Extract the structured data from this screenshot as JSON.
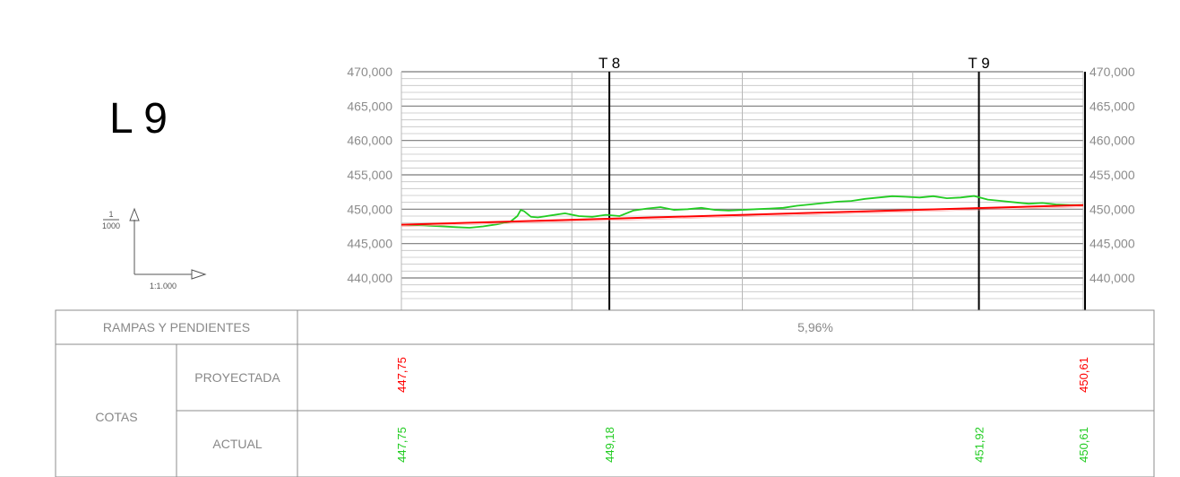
{
  "sheet": {
    "title": "L 9",
    "scale_fraction_num": "1",
    "scale_fraction_den": "1000",
    "scale_label": "1:1.000"
  },
  "profile": {
    "y_min": 437000,
    "y_max": 472000,
    "y_ticks": [
      {
        "value": 470000,
        "label": "470,000"
      },
      {
        "value": 465000,
        "label": "465,000"
      },
      {
        "value": 460000,
        "label": "460,000"
      },
      {
        "value": 455000,
        "label": "455,000"
      },
      {
        "value": 450000,
        "label": "450,000"
      },
      {
        "value": 445000,
        "label": "445,000"
      },
      {
        "value": 440000,
        "label": "440,000"
      }
    ],
    "markers": [
      {
        "label": "T 8",
        "station": 0.305
      },
      {
        "label": "T 9",
        "station": 0.847
      }
    ],
    "colors": {
      "actual": "#22cc22",
      "projected": "#ff0000",
      "grid": "#8c8c8c",
      "marker": "#000000"
    }
  },
  "table": {
    "rampas_label": "RAMPAS Y PENDIENTES",
    "rampas_value": "5,96%",
    "cotas_label": "COTAS",
    "proyectada_label": "PROYECTADA",
    "actual_label": "ACTUAL",
    "proyectada_values": [
      {
        "text": "447,75",
        "station": 0.0
      },
      {
        "text": "450,61",
        "station": 1.0
      }
    ],
    "actual_values": [
      {
        "text": "447,75",
        "station": 0.0
      },
      {
        "text": "449,18",
        "station": 0.305
      },
      {
        "text": "451,92",
        "station": 0.847
      },
      {
        "text": "450,61",
        "station": 1.0
      }
    ]
  },
  "chart_data": {
    "type": "line",
    "title": "",
    "xlabel": "",
    "ylabel": "",
    "ylim": [
      437000,
      472000
    ],
    "series": [
      {
        "x": [
          0.0,
          0.02,
          0.04,
          0.06,
          0.08,
          0.1,
          0.12,
          0.14,
          0.16,
          0.17,
          0.175,
          0.18,
          0.19,
          0.2,
          0.22,
          0.24,
          0.26,
          0.28,
          0.3,
          0.32,
          0.34,
          0.36,
          0.38,
          0.4,
          0.42,
          0.44,
          0.46,
          0.48,
          0.5,
          0.52,
          0.54,
          0.56,
          0.58,
          0.6,
          0.62,
          0.64,
          0.66,
          0.68,
          0.7,
          0.72,
          0.74,
          0.76,
          0.78,
          0.8,
          0.82,
          0.84,
          0.86,
          0.88,
          0.9,
          0.92,
          0.94,
          0.96,
          0.98,
          1.0
        ],
        "values": [
          447750,
          447700,
          447600,
          447500,
          447400,
          447300,
          447500,
          447800,
          448200,
          449000,
          449900,
          449700,
          448900,
          448800,
          449100,
          449400,
          449000,
          448900,
          449180,
          449000,
          449800,
          450100,
          450300,
          449900,
          450000,
          450200,
          449900,
          449800,
          449900,
          450000,
          450100,
          450200,
          450500,
          450700,
          450900,
          451100,
          451200,
          451500,
          451700,
          451900,
          451800,
          451700,
          451900,
          451600,
          451700,
          451920,
          451400,
          451200,
          451000,
          450800,
          450900,
          450700,
          450600,
          450610
        ]
      },
      {
        "x": [
          0.0,
          1.0
        ],
        "values": [
          447750,
          450610
        ]
      }
    ]
  }
}
